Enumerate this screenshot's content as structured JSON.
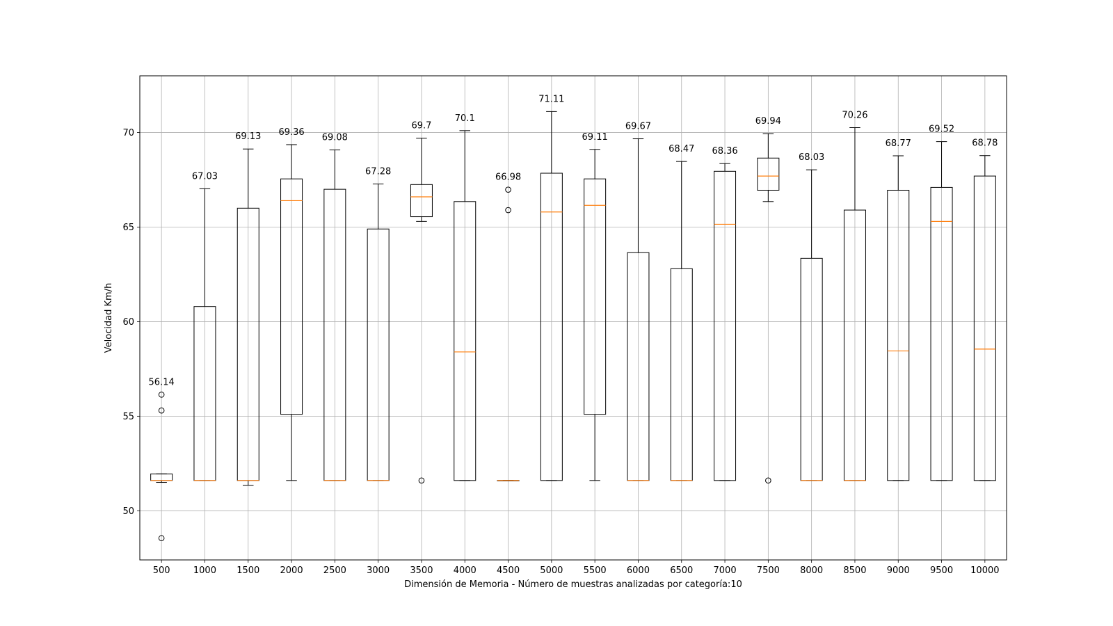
{
  "chart_data": {
    "type": "boxplot",
    "title": "",
    "xlabel": "Dimensión de Memoria - Número de muestras analizadas por categoría:10",
    "ylabel": "Velocidad Km/h",
    "ylim": [
      47.4,
      73.0
    ],
    "yticks": [
      50,
      55,
      60,
      65,
      70
    ],
    "grid": true,
    "box_color": "#000000",
    "median_color": "#ff7f0e",
    "categories": [
      "500",
      "1000",
      "1500",
      "2000",
      "2500",
      "3000",
      "3500",
      "4000",
      "4500",
      "5000",
      "5500",
      "6000",
      "6500",
      "7000",
      "7500",
      "8000",
      "8500",
      "9000",
      "9500",
      "10000"
    ],
    "boxes": [
      {
        "category": "500",
        "whisker_low": 51.5,
        "q1": 51.6,
        "median": 51.6,
        "q3": 51.95,
        "whisker_high": 51.95,
        "outliers": [
          56.14,
          55.3,
          48.55
        ],
        "max_label": "56.14",
        "max": 56.14
      },
      {
        "category": "1000",
        "whisker_low": 51.6,
        "q1": 51.6,
        "median": 51.6,
        "q3": 60.8,
        "whisker_high": 67.03,
        "outliers": [],
        "max_label": "67.03",
        "max": 67.03
      },
      {
        "category": "1500",
        "whisker_low": 51.35,
        "q1": 51.6,
        "median": 51.6,
        "q3": 66.0,
        "whisker_high": 69.13,
        "outliers": [],
        "max_label": "69.13",
        "max": 69.13
      },
      {
        "category": "2000",
        "whisker_low": 51.6,
        "q1": 55.1,
        "median": 66.4,
        "q3": 67.55,
        "whisker_high": 69.36,
        "outliers": [],
        "max_label": "69.36",
        "max": 69.36
      },
      {
        "category": "2500",
        "whisker_low": 51.6,
        "q1": 51.6,
        "median": 51.6,
        "q3": 67.0,
        "whisker_high": 69.08,
        "outliers": [],
        "max_label": "69.08",
        "max": 69.08
      },
      {
        "category": "3000",
        "whisker_low": 51.6,
        "q1": 51.6,
        "median": 51.6,
        "q3": 64.9,
        "whisker_high": 67.28,
        "outliers": [],
        "max_label": "67.28",
        "max": 67.28
      },
      {
        "category": "3500",
        "whisker_low": 65.3,
        "q1": 65.55,
        "median": 66.6,
        "q3": 67.25,
        "whisker_high": 69.7,
        "outliers": [
          51.6
        ],
        "max_label": "69.7",
        "max": 69.7
      },
      {
        "category": "4000",
        "whisker_low": 51.6,
        "q1": 51.6,
        "median": 58.4,
        "q3": 66.35,
        "whisker_high": 70.1,
        "outliers": [],
        "max_label": "70.1",
        "max": 70.1
      },
      {
        "category": "4500",
        "whisker_low": 51.6,
        "q1": 51.6,
        "median": 51.6,
        "q3": 51.6,
        "whisker_high": 51.6,
        "outliers": [
          66.98,
          65.9
        ],
        "max_label": "66.98",
        "max": 66.98
      },
      {
        "category": "5000",
        "whisker_low": 51.6,
        "q1": 51.6,
        "median": 65.8,
        "q3": 67.85,
        "whisker_high": 71.11,
        "outliers": [],
        "max_label": "71.11",
        "max": 71.11
      },
      {
        "category": "5500",
        "whisker_low": 51.6,
        "q1": 55.1,
        "median": 66.15,
        "q3": 67.55,
        "whisker_high": 69.11,
        "outliers": [],
        "max_label": "69.11",
        "max": 69.11
      },
      {
        "category": "6000",
        "whisker_low": 51.6,
        "q1": 51.6,
        "median": 51.6,
        "q3": 63.65,
        "whisker_high": 69.67,
        "outliers": [],
        "max_label": "69.67",
        "max": 69.67
      },
      {
        "category": "6500",
        "whisker_low": 51.6,
        "q1": 51.6,
        "median": 51.6,
        "q3": 62.8,
        "whisker_high": 68.47,
        "outliers": [],
        "max_label": "68.47",
        "max": 68.47
      },
      {
        "category": "7000",
        "whisker_low": 51.6,
        "q1": 51.6,
        "median": 65.15,
        "q3": 67.95,
        "whisker_high": 68.36,
        "outliers": [],
        "max_label": "68.36",
        "max": 68.36
      },
      {
        "category": "7500",
        "whisker_low": 66.35,
        "q1": 66.95,
        "median": 67.7,
        "q3": 68.65,
        "whisker_high": 69.94,
        "outliers": [
          51.6
        ],
        "max_label": "69.94",
        "max": 69.94
      },
      {
        "category": "8000",
        "whisker_low": 51.6,
        "q1": 51.6,
        "median": 51.6,
        "q3": 63.35,
        "whisker_high": 68.03,
        "outliers": [],
        "max_label": "68.03",
        "max": 68.03
      },
      {
        "category": "8500",
        "whisker_low": 51.6,
        "q1": 51.6,
        "median": 51.6,
        "q3": 65.9,
        "whisker_high": 70.26,
        "outliers": [],
        "max_label": "70.26",
        "max": 70.26
      },
      {
        "category": "9000",
        "whisker_low": 51.6,
        "q1": 51.6,
        "median": 58.45,
        "q3": 66.95,
        "whisker_high": 68.77,
        "outliers": [],
        "max_label": "68.77",
        "max": 68.77
      },
      {
        "category": "9500",
        "whisker_low": 51.6,
        "q1": 51.6,
        "median": 65.3,
        "q3": 67.1,
        "whisker_high": 69.52,
        "outliers": [],
        "max_label": "69.52",
        "max": 69.52
      },
      {
        "category": "10000",
        "whisker_low": 51.6,
        "q1": 51.6,
        "median": 58.55,
        "q3": 67.7,
        "whisker_high": 68.78,
        "outliers": [],
        "max_label": "68.78",
        "max": 68.78
      }
    ]
  }
}
